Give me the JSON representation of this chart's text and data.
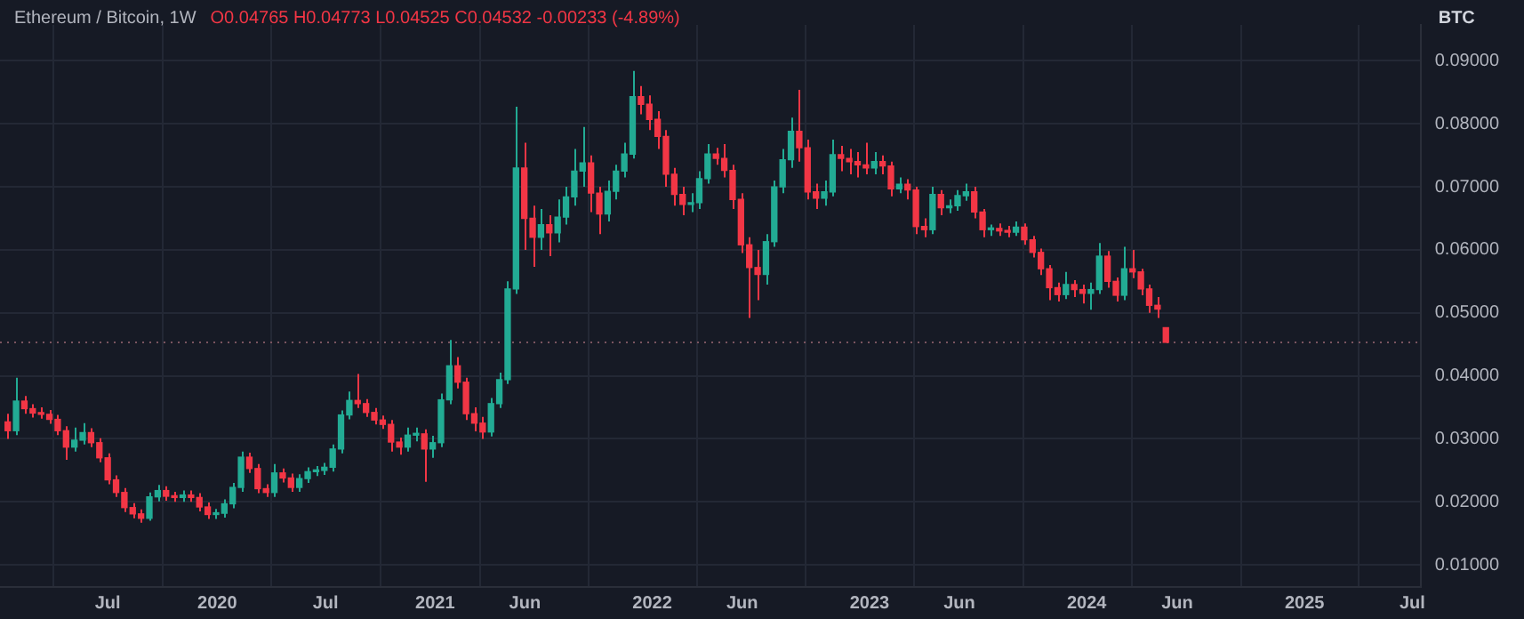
{
  "chart_data": {
    "type": "candlestick",
    "title": "Ethereum / Bitcoin, 1W",
    "subtitle": "O0.04765 H0.04773 L0.04525 C0.04532 -0.00233 (-4.89%)",
    "ylabel": "BTC",
    "x": [
      "2019-01-14",
      "2019-01-28",
      "2019-02-11",
      "2019-02-25",
      "2019-03-11",
      "2019-03-25",
      "2019-04-08",
      "2019-04-22",
      "2019-05-06",
      "2019-05-20",
      "2019-06-03",
      "2019-06-17",
      "2019-07-01",
      "2019-07-15",
      "2019-07-29",
      "2019-08-12",
      "2019-08-26",
      "2019-09-09",
      "2019-09-23",
      "2019-10-07",
      "2019-10-21",
      "2019-11-04",
      "2019-11-18",
      "2019-12-02",
      "2019-12-16",
      "2019-12-30",
      "2020-01-13",
      "2020-01-27",
      "2020-02-10",
      "2020-02-24",
      "2020-03-09",
      "2020-03-23",
      "2020-04-06",
      "2020-04-20",
      "2020-05-04",
      "2020-05-18",
      "2020-06-01",
      "2020-06-15",
      "2020-06-29",
      "2020-07-13",
      "2020-07-27",
      "2020-08-10",
      "2020-08-24",
      "2020-09-07",
      "2020-09-21",
      "2020-10-05",
      "2020-10-19",
      "2020-11-02",
      "2020-11-16",
      "2020-11-30",
      "2020-12-14",
      "2020-12-28",
      "2021-01-11",
      "2021-01-25",
      "2021-02-08",
      "2021-02-22",
      "2021-03-08",
      "2021-03-22",
      "2021-04-05",
      "2021-04-19",
      "2021-05-03",
      "2021-05-17",
      "2021-05-31",
      "2021-06-14",
      "2021-06-28",
      "2021-07-12",
      "2021-07-26",
      "2021-08-09",
      "2021-08-23",
      "2021-09-06",
      "2021-09-20",
      "2021-10-04",
      "2021-10-18",
      "2021-11-01",
      "2021-11-15",
      "2021-11-29",
      "2021-12-13",
      "2021-12-27",
      "2022-01-10",
      "2022-01-24",
      "2022-02-07",
      "2022-02-21",
      "2022-03-07",
      "2022-03-21",
      "2022-04-04",
      "2022-04-18",
      "2022-05-02",
      "2022-05-16",
      "2022-05-30",
      "2022-06-13",
      "2022-06-27",
      "2022-07-11",
      "2022-07-25",
      "2022-08-08",
      "2022-08-22",
      "2022-09-05",
      "2022-09-19",
      "2022-10-03",
      "2022-10-17",
      "2022-10-31",
      "2022-11-14",
      "2022-11-28",
      "2022-12-12",
      "2022-12-26",
      "2023-01-09",
      "2023-01-23",
      "2023-02-06",
      "2023-02-20",
      "2023-03-06",
      "2023-03-20",
      "2023-04-03",
      "2023-04-17",
      "2023-05-01",
      "2023-05-15",
      "2023-05-29",
      "2023-06-12",
      "2023-06-26",
      "2023-07-10",
      "2023-07-24",
      "2023-08-07",
      "2023-08-21",
      "2023-09-04",
      "2023-09-18",
      "2023-10-02",
      "2023-10-16",
      "2023-10-30",
      "2023-11-13",
      "2023-11-27",
      "2023-12-11",
      "2023-12-25",
      "2024-01-08",
      "2024-01-22",
      "2024-02-05",
      "2024-02-19",
      "2024-03-04",
      "2024-03-18",
      "2024-04-01",
      "2024-04-15",
      "2024-04-29",
      "2024-05-13"
    ],
    "ohlc": [
      [
        0.0327,
        0.034,
        0.03,
        0.0313
      ],
      [
        0.0313,
        0.0397,
        0.0306,
        0.036
      ],
      [
        0.036,
        0.0368,
        0.034,
        0.0348
      ],
      [
        0.0348,
        0.0355,
        0.0334,
        0.0341
      ],
      [
        0.0341,
        0.035,
        0.0332,
        0.0339
      ],
      [
        0.0339,
        0.0346,
        0.0324,
        0.0331
      ],
      [
        0.0331,
        0.0338,
        0.0306,
        0.0313
      ],
      [
        0.0313,
        0.032,
        0.0267,
        0.0287
      ],
      [
        0.0287,
        0.0318,
        0.028,
        0.0298
      ],
      [
        0.0298,
        0.0325,
        0.0291,
        0.031
      ],
      [
        0.031,
        0.0317,
        0.0287,
        0.0294
      ],
      [
        0.0294,
        0.0301,
        0.0263,
        0.027
      ],
      [
        0.027,
        0.0277,
        0.0228,
        0.0235
      ],
      [
        0.0235,
        0.0242,
        0.0208,
        0.0215
      ],
      [
        0.0215,
        0.0222,
        0.0184,
        0.0191
      ],
      [
        0.0191,
        0.0198,
        0.0174,
        0.0181
      ],
      [
        0.0181,
        0.0188,
        0.0167,
        0.0174
      ],
      [
        0.0174,
        0.0215,
        0.017,
        0.0208
      ],
      [
        0.0208,
        0.0227,
        0.0201,
        0.0218
      ],
      [
        0.0218,
        0.0225,
        0.0202,
        0.0209
      ],
      [
        0.0209,
        0.0216,
        0.02,
        0.0207
      ],
      [
        0.0207,
        0.0218,
        0.02,
        0.0211
      ],
      [
        0.0211,
        0.0218,
        0.02,
        0.0207
      ],
      [
        0.0207,
        0.0214,
        0.0185,
        0.0192
      ],
      [
        0.0192,
        0.0199,
        0.0173,
        0.018
      ],
      [
        0.018,
        0.0189,
        0.0173,
        0.0182
      ],
      [
        0.0182,
        0.0204,
        0.0175,
        0.0197
      ],
      [
        0.0197,
        0.023,
        0.019,
        0.0223
      ],
      [
        0.0223,
        0.028,
        0.0216,
        0.0271
      ],
      [
        0.0271,
        0.0278,
        0.0246,
        0.0253
      ],
      [
        0.0253,
        0.026,
        0.0214,
        0.0221
      ],
      [
        0.0221,
        0.0228,
        0.0208,
        0.0215
      ],
      [
        0.0215,
        0.026,
        0.0208,
        0.0246
      ],
      [
        0.0246,
        0.0253,
        0.0231,
        0.0238
      ],
      [
        0.0238,
        0.0245,
        0.0216,
        0.0223
      ],
      [
        0.0223,
        0.0244,
        0.0216,
        0.0237
      ],
      [
        0.0237,
        0.0255,
        0.023,
        0.0248
      ],
      [
        0.0248,
        0.0257,
        0.0241,
        0.025
      ],
      [
        0.025,
        0.0262,
        0.0243,
        0.0255
      ],
      [
        0.0255,
        0.0291,
        0.0248,
        0.0284
      ],
      [
        0.0284,
        0.0345,
        0.0277,
        0.0338
      ],
      [
        0.0338,
        0.0375,
        0.0331,
        0.0361
      ],
      [
        0.0361,
        0.0403,
        0.0349,
        0.0356
      ],
      [
        0.0356,
        0.0363,
        0.0335,
        0.0342
      ],
      [
        0.0342,
        0.0349,
        0.0323,
        0.033
      ],
      [
        0.033,
        0.0337,
        0.0316,
        0.0323
      ],
      [
        0.0323,
        0.033,
        0.028,
        0.0295
      ],
      [
        0.0295,
        0.0302,
        0.0275,
        0.0287
      ],
      [
        0.0287,
        0.0318,
        0.028,
        0.0306
      ],
      [
        0.0306,
        0.0318,
        0.0296,
        0.0308
      ],
      [
        0.0308,
        0.0315,
        0.0232,
        0.0284
      ],
      [
        0.0284,
        0.0305,
        0.027,
        0.0294
      ],
      [
        0.0294,
        0.0372,
        0.0287,
        0.0362
      ],
      [
        0.0362,
        0.0457,
        0.0355,
        0.0416
      ],
      [
        0.0416,
        0.043,
        0.038,
        0.039
      ],
      [
        0.039,
        0.0397,
        0.033,
        0.034
      ],
      [
        0.034,
        0.035,
        0.0312,
        0.0325
      ],
      [
        0.0325,
        0.0335,
        0.03,
        0.0311
      ],
      [
        0.0311,
        0.0365,
        0.0304,
        0.0356
      ],
      [
        0.0356,
        0.0405,
        0.0349,
        0.0394
      ],
      [
        0.0394,
        0.055,
        0.0387,
        0.0538
      ],
      [
        0.0538,
        0.0827,
        0.053,
        0.073
      ],
      [
        0.073,
        0.077,
        0.06,
        0.065
      ],
      [
        0.065,
        0.067,
        0.0573,
        0.062
      ],
      [
        0.062,
        0.0665,
        0.06,
        0.064
      ],
      [
        0.064,
        0.0655,
        0.059,
        0.0627
      ],
      [
        0.0627,
        0.068,
        0.0612,
        0.0652
      ],
      [
        0.0652,
        0.07,
        0.064,
        0.0684
      ],
      [
        0.0684,
        0.076,
        0.067,
        0.0725
      ],
      [
        0.0725,
        0.0795,
        0.07,
        0.0738
      ],
      [
        0.0738,
        0.075,
        0.066,
        0.069
      ],
      [
        0.069,
        0.07,
        0.0625,
        0.0657
      ],
      [
        0.0657,
        0.071,
        0.0645,
        0.0693
      ],
      [
        0.0693,
        0.0735,
        0.068,
        0.0725
      ],
      [
        0.0725,
        0.077,
        0.0715,
        0.0752
      ],
      [
        0.0752,
        0.0884,
        0.0745,
        0.0843
      ],
      [
        0.0843,
        0.086,
        0.0815,
        0.0831
      ],
      [
        0.0831,
        0.0845,
        0.079,
        0.0807
      ],
      [
        0.0807,
        0.082,
        0.076,
        0.078
      ],
      [
        0.078,
        0.079,
        0.07,
        0.072
      ],
      [
        0.072,
        0.073,
        0.067,
        0.0688
      ],
      [
        0.0688,
        0.07,
        0.0655,
        0.0672
      ],
      [
        0.0672,
        0.069,
        0.066,
        0.0675
      ],
      [
        0.0675,
        0.0725,
        0.0665,
        0.0713
      ],
      [
        0.0713,
        0.0768,
        0.0705,
        0.0752
      ],
      [
        0.0752,
        0.0762,
        0.0735,
        0.0745
      ],
      [
        0.0745,
        0.0768,
        0.0715,
        0.0726
      ],
      [
        0.0726,
        0.0735,
        0.0665,
        0.068
      ],
      [
        0.068,
        0.069,
        0.0595,
        0.0608
      ],
      [
        0.0608,
        0.062,
        0.0492,
        0.0572
      ],
      [
        0.0572,
        0.06,
        0.052,
        0.0561
      ],
      [
        0.0561,
        0.0625,
        0.0545,
        0.0613
      ],
      [
        0.0613,
        0.071,
        0.0605,
        0.07
      ],
      [
        0.07,
        0.076,
        0.069,
        0.0743
      ],
      [
        0.0743,
        0.081,
        0.073,
        0.0788
      ],
      [
        0.0788,
        0.0854,
        0.074,
        0.0762
      ],
      [
        0.0762,
        0.0775,
        0.068,
        0.0692
      ],
      [
        0.0692,
        0.0705,
        0.0665,
        0.0682
      ],
      [
        0.0682,
        0.071,
        0.067,
        0.0692
      ],
      [
        0.0692,
        0.0775,
        0.0685,
        0.0751
      ],
      [
        0.0751,
        0.0765,
        0.0725,
        0.0745
      ],
      [
        0.0745,
        0.076,
        0.072,
        0.074
      ],
      [
        0.074,
        0.0755,
        0.0715,
        0.0735
      ],
      [
        0.0735,
        0.077,
        0.072,
        0.073
      ],
      [
        0.073,
        0.0755,
        0.072,
        0.074
      ],
      [
        0.074,
        0.075,
        0.072,
        0.0733
      ],
      [
        0.0733,
        0.074,
        0.0685,
        0.0697
      ],
      [
        0.0697,
        0.0715,
        0.069,
        0.0704
      ],
      [
        0.0704,
        0.0712,
        0.068,
        0.0695
      ],
      [
        0.0695,
        0.07,
        0.0625,
        0.0637
      ],
      [
        0.0637,
        0.065,
        0.062,
        0.0632
      ],
      [
        0.0632,
        0.07,
        0.0625,
        0.0688
      ],
      [
        0.0688,
        0.0695,
        0.0655,
        0.0667
      ],
      [
        0.0667,
        0.068,
        0.0658,
        0.067
      ],
      [
        0.067,
        0.0695,
        0.0662,
        0.0686
      ],
      [
        0.0686,
        0.0705,
        0.0678,
        0.0692
      ],
      [
        0.0692,
        0.07,
        0.065,
        0.066
      ],
      [
        0.066,
        0.0665,
        0.062,
        0.0632
      ],
      [
        0.0632,
        0.064,
        0.0622,
        0.0634
      ],
      [
        0.0634,
        0.0642,
        0.0622,
        0.063
      ],
      [
        0.063,
        0.0638,
        0.062,
        0.0628
      ],
      [
        0.0628,
        0.0645,
        0.0622,
        0.0636
      ],
      [
        0.0636,
        0.0642,
        0.0608,
        0.0616
      ],
      [
        0.0616,
        0.0622,
        0.0588,
        0.0596
      ],
      [
        0.0596,
        0.0602,
        0.056,
        0.057
      ],
      [
        0.057,
        0.0576,
        0.052,
        0.054
      ],
      [
        0.054,
        0.0548,
        0.0518,
        0.0529
      ],
      [
        0.0529,
        0.0565,
        0.0522,
        0.0545
      ],
      [
        0.0545,
        0.0552,
        0.0525,
        0.0537
      ],
      [
        0.0537,
        0.0545,
        0.0515,
        0.0531
      ],
      [
        0.0531,
        0.0548,
        0.0505,
        0.0537
      ],
      [
        0.0537,
        0.0611,
        0.053,
        0.059
      ],
      [
        0.059,
        0.0598,
        0.054,
        0.055
      ],
      [
        0.055,
        0.0556,
        0.0518,
        0.0528
      ],
      [
        0.0528,
        0.0605,
        0.052,
        0.057
      ],
      [
        0.057,
        0.06,
        0.0555,
        0.0565
      ],
      [
        0.0565,
        0.057,
        0.0528,
        0.0538
      ],
      [
        0.0538,
        0.0545,
        0.05,
        0.0512
      ],
      [
        0.0512,
        0.0525,
        0.0492,
        0.0506
      ],
      [
        0.04765,
        0.04773,
        0.04525,
        0.04532
      ]
    ],
    "colors": [
      "#f23645",
      "#22ab94",
      "#f23645",
      "#f23645",
      "#f23645",
      "#f23645",
      "#f23645",
      "#f23645",
      "#22ab94",
      "#22ab94",
      "#f23645",
      "#f23645",
      "#f23645",
      "#f23645",
      "#f23645",
      "#f23645",
      "#f23645",
      "#22ab94",
      "#22ab94",
      "#f23645",
      "#f23645",
      "#22ab94",
      "#f23645",
      "#f23645",
      "#f23645",
      "#22ab94",
      "#22ab94",
      "#22ab94",
      "#22ab94",
      "#f23645",
      "#f23645",
      "#f23645",
      "#22ab94",
      "#f23645",
      "#f23645",
      "#22ab94",
      "#22ab94",
      "#22ab94",
      "#22ab94",
      "#22ab94",
      "#22ab94",
      "#22ab94",
      "#f23645",
      "#f23645",
      "#f23645",
      "#f23645",
      "#f23645",
      "#f23645",
      "#22ab94",
      "#22ab94",
      "#f23645",
      "#22ab94",
      "#22ab94",
      "#22ab94",
      "#f23645",
      "#f23645",
      "#f23645",
      "#f23645",
      "#22ab94",
      "#22ab94",
      "#22ab94",
      "#22ab94",
      "#f23645",
      "#f23645",
      "#22ab94",
      "#f23645",
      "#22ab94",
      "#22ab94",
      "#22ab94",
      "#22ab94",
      "#f23645",
      "#f23645",
      "#22ab94",
      "#22ab94",
      "#22ab94",
      "#22ab94",
      "#f23645",
      "#f23645",
      "#f23645",
      "#f23645",
      "#f23645",
      "#f23645",
      "#22ab94",
      "#22ab94",
      "#22ab94",
      "#f23645",
      "#f23645",
      "#f23645",
      "#f23645",
      "#f23645",
      "#f23645",
      "#22ab94",
      "#22ab94",
      "#22ab94",
      "#22ab94",
      "#f23645",
      "#f23645",
      "#f23645",
      "#22ab94",
      "#22ab94",
      "#f23645",
      "#f23645",
      "#f23645",
      "#f23645",
      "#22ab94",
      "#f23645",
      "#f23645",
      "#22ab94",
      "#f23645",
      "#f23645",
      "#f23645",
      "#22ab94",
      "#f23645",
      "#22ab94",
      "#22ab94",
      "#22ab94",
      "#f23645",
      "#f23645",
      "#22ab94",
      "#f23645",
      "#f23645",
      "#22ab94",
      "#f23645",
      "#f23645",
      "#f23645",
      "#f23645",
      "#f23645",
      "#22ab94",
      "#f23645",
      "#f23645",
      "#22ab94",
      "#22ab94",
      "#f23645",
      "#f23645",
      "#22ab94",
      "#f23645",
      "#f23645",
      "#f23645",
      "#f23645",
      "#f23645"
    ],
    "xlim": [
      "2019-01-01",
      "2025-07-15"
    ],
    "xticks": [
      {
        "value": "2019-07-01",
        "label": "Jul"
      },
      {
        "value": "2020-01-01",
        "label": "2020"
      },
      {
        "value": "2020-07-01",
        "label": "Jul"
      },
      {
        "value": "2021-01-01",
        "label": "2021"
      },
      {
        "value": "2021-06-01",
        "label": "Jun"
      },
      {
        "value": "2022-01-01",
        "label": "2022"
      },
      {
        "value": "2022-06-01",
        "label": "Jun"
      },
      {
        "value": "2023-01-01",
        "label": "2023"
      },
      {
        "value": "2023-06-01",
        "label": "Jun"
      },
      {
        "value": "2024-01-01",
        "label": "2024"
      },
      {
        "value": "2024-06-01",
        "label": "Jun"
      },
      {
        "value": "2025-01-01",
        "label": "2025"
      },
      {
        "value": "2025-07-01",
        "label": "Jul"
      }
    ],
    "ylim": [
      0.0065,
      0.0957
    ],
    "yticks": [
      {
        "value": 0.01,
        "label": "0.01000"
      },
      {
        "value": 0.02,
        "label": "0.02000"
      },
      {
        "value": 0.03,
        "label": "0.03000"
      },
      {
        "value": 0.04,
        "label": "0.04000"
      },
      {
        "value": 0.05,
        "label": "0.05000"
      },
      {
        "value": 0.06,
        "label": "0.06000"
      },
      {
        "value": 0.07,
        "label": "0.07000"
      },
      {
        "value": 0.08,
        "label": "0.08000"
      },
      {
        "value": 0.09,
        "label": "0.09000"
      }
    ],
    "ref_lines": [
      {
        "axis": "y",
        "value": 0.04532,
        "color": "#7a5560",
        "line_style": "dotted"
      }
    ],
    "grid": true
  }
}
